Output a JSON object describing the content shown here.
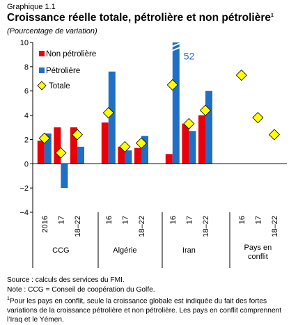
{
  "header": {
    "pretitle": "Graphique 1.1",
    "title": "Croissance réelle totale, pétrolière et non pétrolière",
    "title_note": "1",
    "subtitle": "(Pourcentage de variation)"
  },
  "colors": {
    "non_petroliere": "#e8000b",
    "petroliere": "#1f6fc5",
    "totale": "#ffff00",
    "totale_border": "#000000"
  },
  "chart_data": {
    "type": "bar",
    "ylim": [
      -4,
      10
    ],
    "yticks": [
      -4,
      -2,
      0,
      2,
      4,
      6,
      8,
      10
    ],
    "ytick_labels": [
      "−4",
      "−2",
      "0",
      "2",
      "4",
      "6",
      "8",
      "10"
    ],
    "legend": [
      {
        "key": "non_petroliere",
        "label": "Non pétrolière"
      },
      {
        "key": "petroliere",
        "label": "Pétrolière"
      },
      {
        "key": "totale",
        "label": "Totale"
      }
    ],
    "legend_position": "top-left",
    "groups": [
      {
        "label": "CCG",
        "categories": [
          "2016",
          "17",
          "18–22"
        ],
        "non_petroliere": [
          1.9,
          3.0,
          3.0
        ],
        "petroliere": [
          2.5,
          -2.0,
          1.4
        ],
        "totale": [
          2.1,
          0.9,
          2.4
        ]
      },
      {
        "label": "Algérie",
        "categories": [
          "16",
          "17",
          "18–22"
        ],
        "non_petroliere": [
          3.4,
          1.4,
          1.3
        ],
        "petroliere": [
          7.6,
          1.1,
          2.3
        ],
        "totale": [
          4.2,
          1.4,
          1.7
        ]
      },
      {
        "label": "Iran",
        "categories": [
          "16",
          "17",
          "18–22"
        ],
        "non_petroliere": [
          0.8,
          3.3,
          4.0
        ],
        "petroliere": [
          52,
          2.7,
          6.0
        ],
        "totale": [
          6.5,
          3.3,
          4.4
        ]
      },
      {
        "label": "Pays en conflit",
        "label_lines": [
          "Pays en",
          "conflit"
        ],
        "categories": [
          "16",
          "17",
          "18–22"
        ],
        "non_petroliere": [
          null,
          null,
          null
        ],
        "petroliere": [
          null,
          null,
          null
        ],
        "totale": [
          7.3,
          3.8,
          2.4
        ]
      }
    ],
    "annotations": [
      {
        "text": "52",
        "group": 2,
        "category": 0
      }
    ]
  },
  "footer": {
    "source": "Source : calculs des services du FMI.",
    "note": "Note : CCG = Conseil de coopération du Golfe.",
    "footnote_mark": "1",
    "footnote": "Pour les pays en conflit, seule la croissance globale est indiquée du fait des fortes variations de la croissance pétrolière et non pétrolière. Les pays en conflit comprennent l’Iraq et le Yémen."
  }
}
